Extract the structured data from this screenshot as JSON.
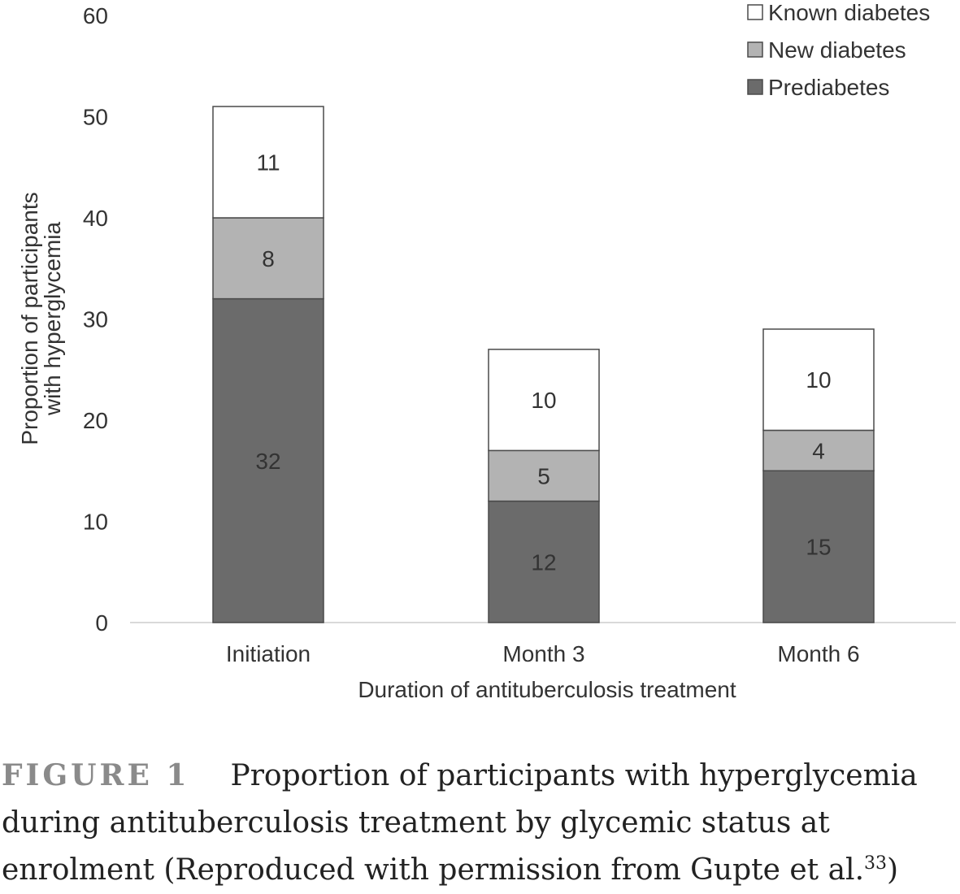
{
  "chart_data": {
    "type": "bar",
    "stacked": true,
    "categories": [
      "Initiation",
      "Month 3",
      "Month 6"
    ],
    "series": [
      {
        "name": "Prediabetes",
        "values": [
          32,
          12,
          15
        ],
        "color": "#6b6b6b"
      },
      {
        "name": "New diabetes",
        "values": [
          8,
          5,
          4
        ],
        "color": "#b3b3b3"
      },
      {
        "name": "Known diabetes",
        "values": [
          11,
          10,
          10
        ],
        "color": "#ffffff"
      }
    ],
    "legend_order": [
      "Known diabetes",
      "New diabetes",
      "Prediabetes"
    ],
    "legend_position": "top-right",
    "xlabel": "Duration of antituberculosis treatment",
    "ylabel_lines": [
      "Proportion of participants",
      "with hyperglycemia"
    ],
    "ylim": [
      0,
      60
    ],
    "yticks": [
      0,
      10,
      20,
      30,
      40,
      50,
      60
    ],
    "grid": false
  },
  "caption": {
    "figure_label": "FIGURE 1",
    "text": "Proportion of participants with hyperglycemia during antituberculosis treatment by glycemic status at enrolment (Reproduced with permission from Gupte et al.",
    "citation": "33",
    "closing": ")"
  }
}
